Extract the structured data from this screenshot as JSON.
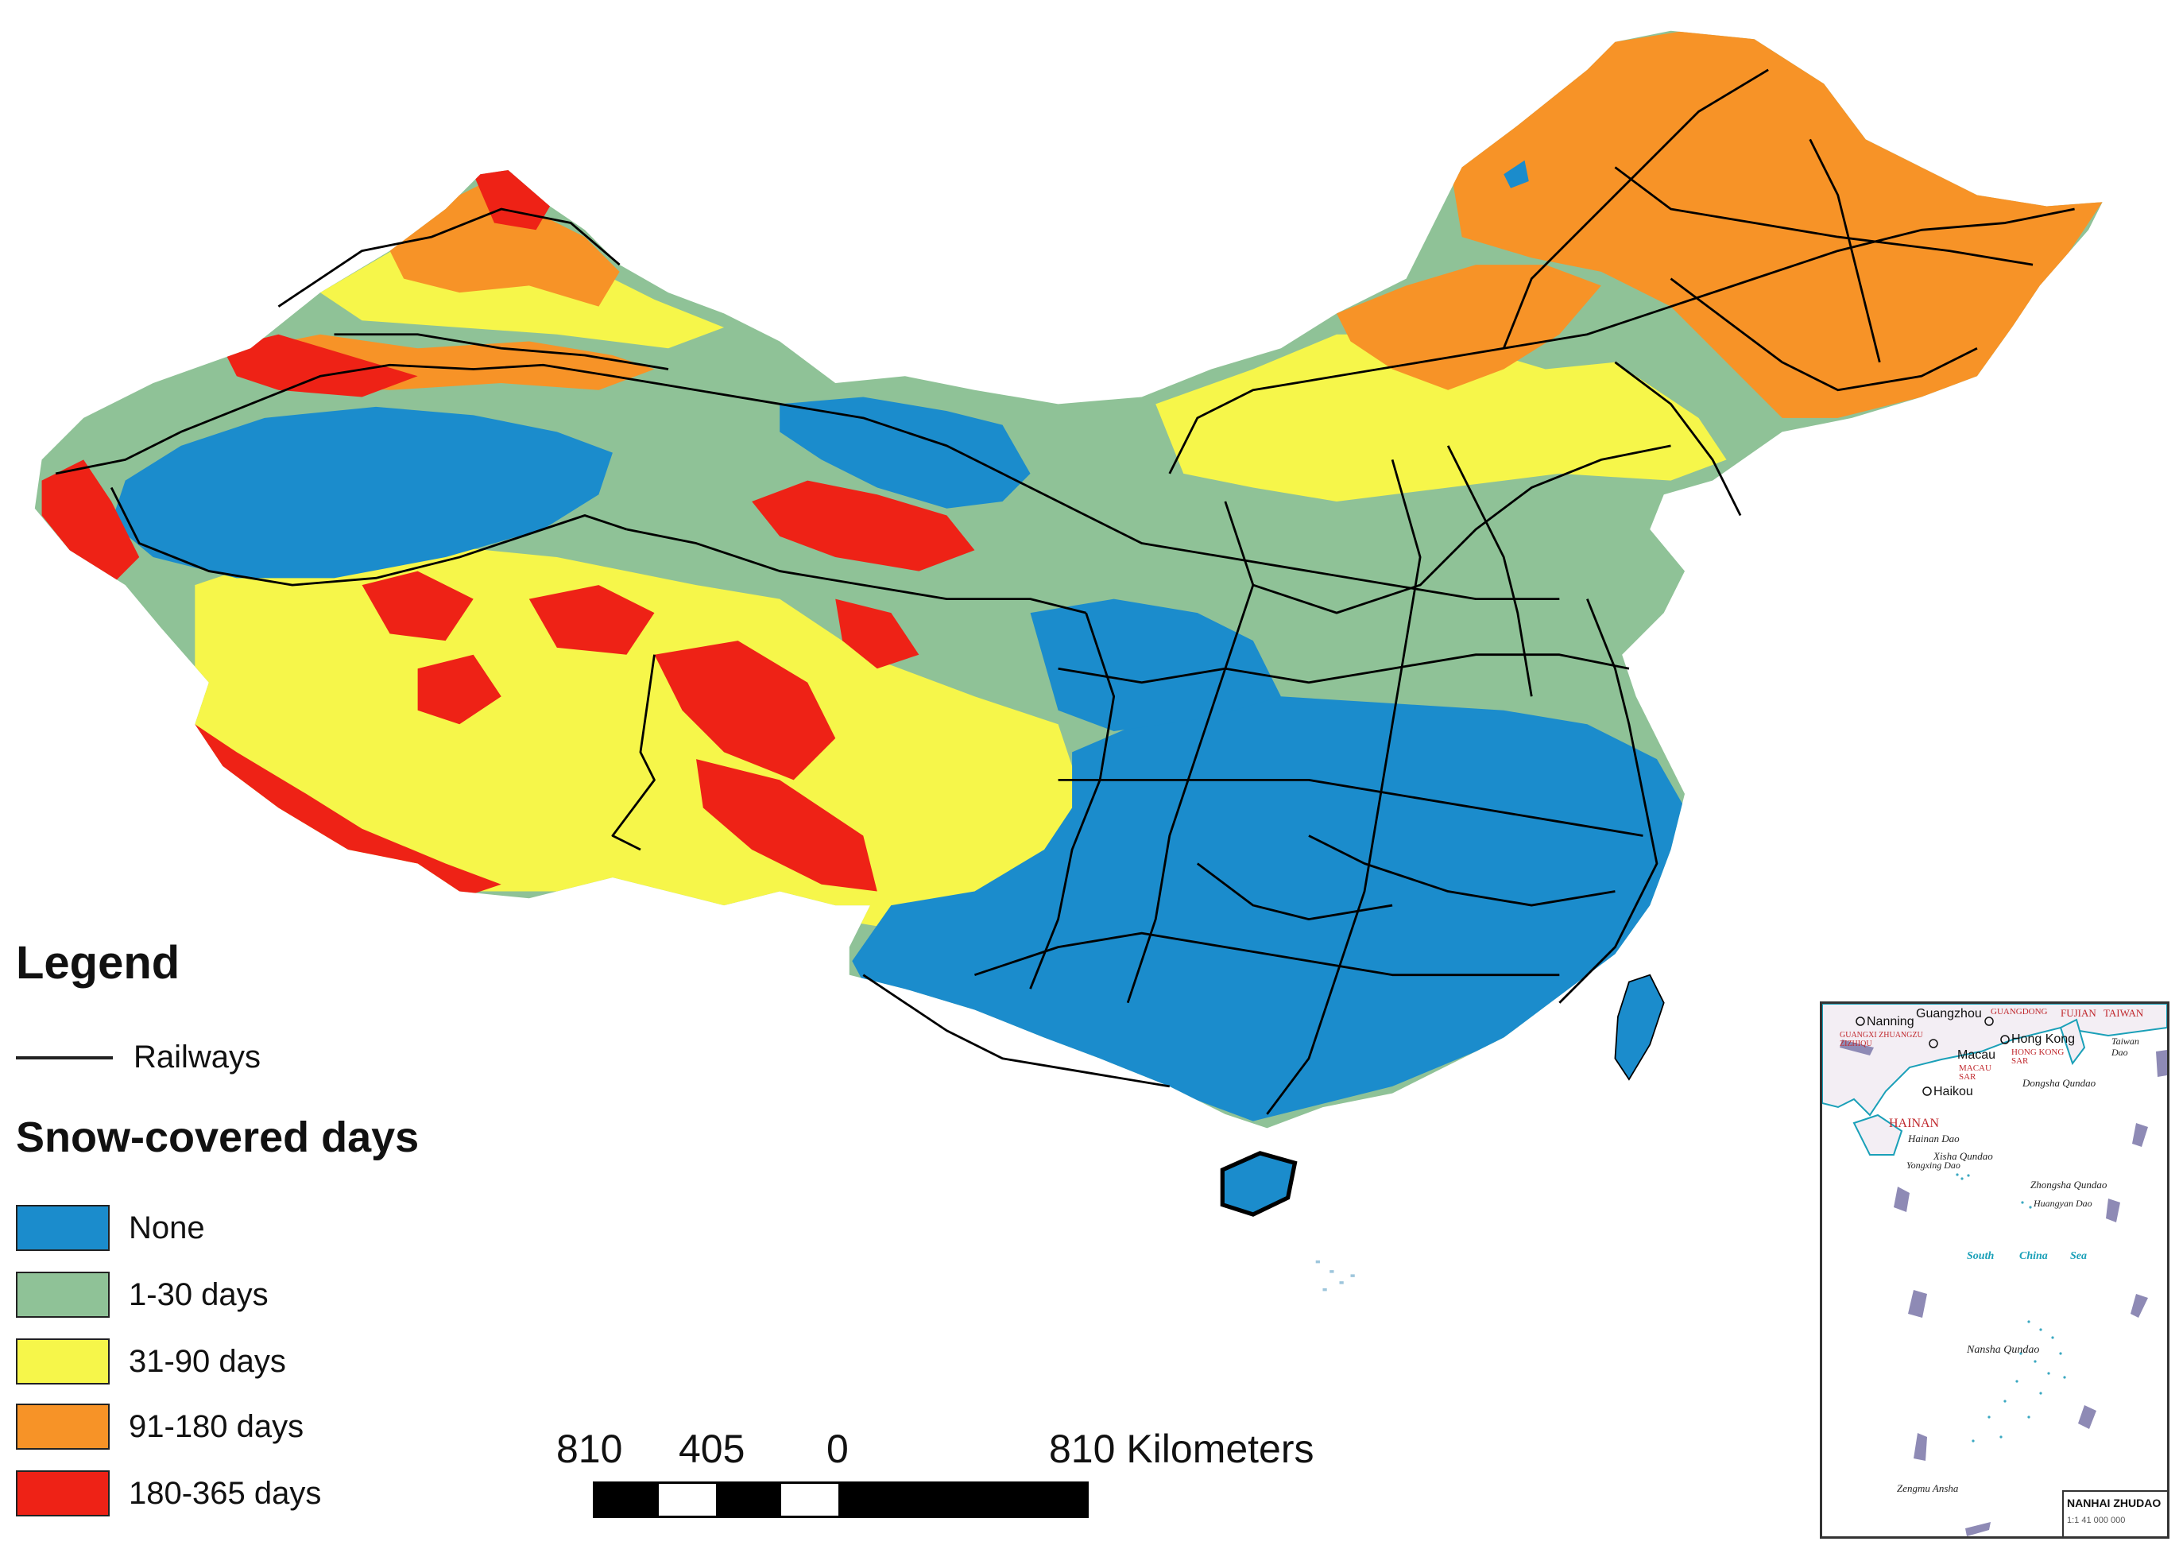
{
  "legend": {
    "title": "Legend",
    "railways_label": "Railways",
    "snow_title": "Snow-covered days",
    "classes": [
      {
        "label": "None",
        "color": "#1b8ccc"
      },
      {
        "label": "1-30 days",
        "color": "#8fc297"
      },
      {
        "label": "31-90 days",
        "color": "#f6f64a"
      },
      {
        "label": "91-180 days",
        "color": "#f79327"
      },
      {
        "label": "180-365 days",
        "color": "#ee2216"
      }
    ]
  },
  "scale": {
    "labels": [
      "810",
      "405",
      "0",
      "810 Kilometers"
    ]
  },
  "inset": {
    "labels": {
      "guangzhou": "Guangzhou",
      "nanning": "Nanning",
      "guangdong": "GUANGDONG",
      "fujian": "FUJIAN",
      "taiwan": "TAIWAN",
      "guangxi": "GUANGXI ZHUANGZU ZIZHIQU",
      "hongkong": "Hong Kong",
      "hongkong_sar": "HONG KONG SAR",
      "macau": "Macau",
      "macau_sar": "MACAU SAR",
      "taiwan_dao": "Taiwan Dao",
      "haikou": "Haikou",
      "dongsha": "Dongsha Qundao",
      "hainan": "HAINAN",
      "hainan_dao": "Hainan Dao",
      "xisha": "Xisha Qundao",
      "yongxing": "Yongxing Dao",
      "zhongsha": "Zhongsha Qundao",
      "huangyan": "Huangyan Dao",
      "scs_1": "South",
      "scs_2": "China",
      "scs_3": "Sea",
      "nansha": "Nansha Qundao",
      "zengmu": "Zengmu Ansha",
      "stamp_title": "NANHAI ZHUDAO",
      "stamp_scale": "1:1 41 000 000"
    }
  }
}
